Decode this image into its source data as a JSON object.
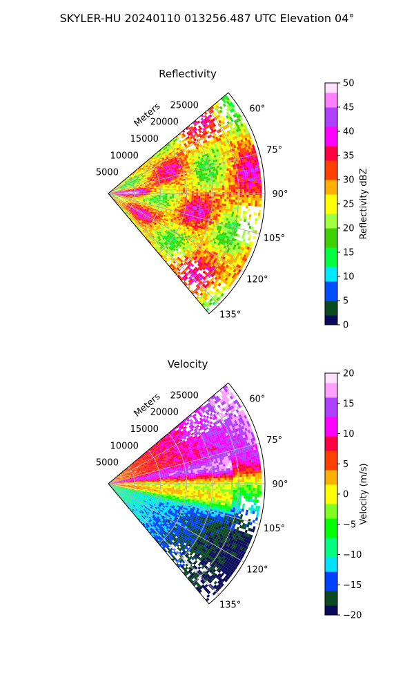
{
  "figure": {
    "title": "SKYLER-HU  20240110  013256.487 UTC Elevation 04°"
  },
  "colors": {
    "reflectivity_stops": [
      "#0a0a5a",
      "#0a4a20",
      "#0050ff",
      "#00e8ff",
      "#00ff40",
      "#40d000",
      "#a0ff40",
      "#ffff00",
      "#ffb000",
      "#ff4000",
      "#ff0040",
      "#ff00ff",
      "#b040ff",
      "#ff80ff",
      "#ffe0ff"
    ],
    "velocity_stops": [
      "#0a0a5a",
      "#0a4a20",
      "#0040ff",
      "#00e0ff",
      "#00ff80",
      "#00ff00",
      "#80ff20",
      "#ffff00",
      "#ffb000",
      "#ff4000",
      "#ff0040",
      "#ff00ff",
      "#b040ff",
      "#ffa0ff",
      "#ffe0ff"
    ]
  },
  "chart_data": [
    {
      "type": "heatmap",
      "projection": "polar-sector",
      "title": "Reflectivity",
      "radial_label": "Meters",
      "radial_ticks": [
        5000,
        10000,
        15000,
        20000,
        25000
      ],
      "radial_tick_labels": [
        "5000",
        "10000",
        "15000",
        "20000",
        "25000"
      ],
      "r_max": 30000,
      "azimuth_range_deg": [
        50,
        140
      ],
      "azimuth_ticks": [
        "60°",
        "75°",
        "90°",
        "105°",
        "120°",
        "135°"
      ],
      "azimuth_values": [
        60,
        75,
        90,
        105,
        120,
        135
      ],
      "colorbar": {
        "label": "Reflectivity dBZ",
        "range": [
          0,
          50
        ],
        "ticks": [
          0,
          5,
          10,
          15,
          20,
          25,
          30,
          35,
          40,
          45,
          50
        ],
        "tick_labels": [
          "0",
          "5",
          "10",
          "15",
          "20",
          "25",
          "30",
          "35",
          "40",
          "45",
          "50"
        ]
      }
    },
    {
      "type": "heatmap",
      "projection": "polar-sector",
      "title": "Velocity",
      "radial_label": "Meters",
      "radial_ticks": [
        5000,
        10000,
        15000,
        20000,
        25000
      ],
      "radial_tick_labels": [
        "5000",
        "10000",
        "15000",
        "20000",
        "25000"
      ],
      "r_max": 30000,
      "azimuth_range_deg": [
        50,
        140
      ],
      "azimuth_ticks": [
        "60°",
        "75°",
        "90°",
        "105°",
        "120°",
        "135°"
      ],
      "azimuth_values": [
        60,
        75,
        90,
        105,
        120,
        135
      ],
      "colorbar": {
        "label": "Velocity (m/s)",
        "range": [
          -20,
          20
        ],
        "ticks": [
          -20,
          -15,
          -10,
          -5,
          0,
          5,
          10,
          15,
          20
        ],
        "tick_labels": [
          "−20",
          "−15",
          "−10",
          "−5",
          "0",
          "5",
          "10",
          "15",
          "20"
        ]
      }
    }
  ]
}
